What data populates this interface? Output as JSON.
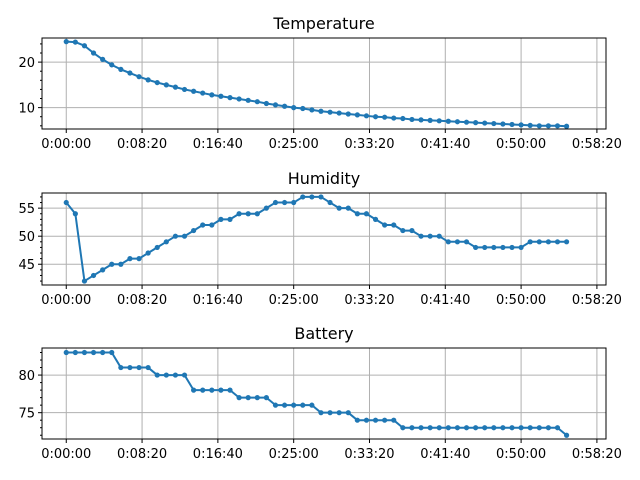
{
  "chart_data": [
    {
      "type": "line",
      "title": "Temperature",
      "xlabel": "",
      "ylabel": "",
      "x_unit": "seconds",
      "x_ticks": [
        0,
        500,
        1000,
        1500,
        2000,
        2500,
        3000,
        3500
      ],
      "x_tick_labels": [
        "0:00:00",
        "0:08:20",
        "0:16:40",
        "0:25:00",
        "0:33:20",
        "0:41:40",
        "0:50:00",
        "0:58:20"
      ],
      "xlim": [
        -160,
        3560
      ],
      "y_ticks": [
        10,
        20
      ],
      "y_tick_labels": [
        "10",
        "20"
      ],
      "ylim": [
        5.3,
        25.3
      ],
      "grid": true,
      "color": "#1f77b4",
      "x": [
        0,
        60,
        120,
        180,
        240,
        300,
        360,
        420,
        480,
        540,
        600,
        660,
        720,
        780,
        840,
        900,
        960,
        1020,
        1080,
        1140,
        1200,
        1260,
        1320,
        1380,
        1440,
        1500,
        1560,
        1620,
        1680,
        1740,
        1800,
        1860,
        1920,
        1980,
        2040,
        2100,
        2160,
        2220,
        2280,
        2340,
        2400,
        2460,
        2520,
        2580,
        2640,
        2700,
        2760,
        2820,
        2880,
        2940,
        3000,
        3060,
        3120,
        3180,
        3240,
        3300
      ],
      "y": [
        24.5,
        24.4,
        23.6,
        22.0,
        20.6,
        19.4,
        18.4,
        17.6,
        16.8,
        16.1,
        15.5,
        15.0,
        14.5,
        14.0,
        13.6,
        13.2,
        12.8,
        12.5,
        12.2,
        11.9,
        11.6,
        11.3,
        10.9,
        10.6,
        10.3,
        10.0,
        9.8,
        9.5,
        9.2,
        9.0,
        8.8,
        8.6,
        8.4,
        8.2,
        8.0,
        7.9,
        7.7,
        7.6,
        7.4,
        7.3,
        7.2,
        7.1,
        7.0,
        6.9,
        6.8,
        6.7,
        6.6,
        6.5,
        6.4,
        6.3,
        6.2,
        6.1,
        6.0,
        6.0,
        6.0,
        5.9
      ]
    },
    {
      "type": "line",
      "title": "Humidity",
      "xlabel": "",
      "ylabel": "",
      "x_unit": "seconds",
      "x_ticks": [
        0,
        500,
        1000,
        1500,
        2000,
        2500,
        3000,
        3500
      ],
      "x_tick_labels": [
        "0:00:00",
        "0:08:20",
        "0:16:40",
        "0:25:00",
        "0:33:20",
        "0:41:40",
        "0:50:00",
        "0:58:20"
      ],
      "xlim": [
        -160,
        3560
      ],
      "y_ticks": [
        45,
        50,
        55
      ],
      "y_tick_labels": [
        "45",
        "50",
        "55"
      ],
      "ylim": [
        41.3,
        57.7
      ],
      "grid": true,
      "color": "#1f77b4",
      "x": [
        0,
        60,
        120,
        180,
        240,
        300,
        360,
        420,
        480,
        540,
        600,
        660,
        720,
        780,
        840,
        900,
        960,
        1020,
        1080,
        1140,
        1200,
        1260,
        1320,
        1380,
        1440,
        1500,
        1560,
        1620,
        1680,
        1740,
        1800,
        1860,
        1920,
        1980,
        2040,
        2100,
        2160,
        2220,
        2280,
        2340,
        2400,
        2460,
        2520,
        2580,
        2640,
        2700,
        2760,
        2820,
        2880,
        2940,
        3000,
        3060,
        3120,
        3180,
        3240,
        3300
      ],
      "y": [
        56,
        54,
        42,
        43,
        44,
        45,
        45,
        46,
        46,
        47,
        48,
        49,
        50,
        50,
        51,
        52,
        52,
        53,
        53,
        54,
        54,
        54,
        55,
        56,
        56,
        56,
        57,
        57,
        57,
        56,
        55,
        55,
        54,
        54,
        53,
        52,
        52,
        51,
        51,
        50,
        50,
        50,
        49,
        49,
        49,
        48,
        48,
        48,
        48,
        48,
        48,
        49,
        49,
        49,
        49,
        49
      ]
    },
    {
      "type": "line",
      "title": "Battery",
      "xlabel": "",
      "ylabel": "",
      "x_unit": "seconds",
      "x_ticks": [
        0,
        500,
        1000,
        1500,
        2000,
        2500,
        3000,
        3500
      ],
      "x_tick_labels": [
        "0:00:00",
        "0:08:20",
        "0:16:40",
        "0:25:00",
        "0:33:20",
        "0:41:40",
        "0:50:00",
        "0:58:20"
      ],
      "xlim": [
        -160,
        3560
      ],
      "y_ticks": [
        75,
        80
      ],
      "y_tick_labels": [
        "75",
        "80"
      ],
      "ylim": [
        71.5,
        83.6
      ],
      "grid": true,
      "color": "#1f77b4",
      "x": [
        0,
        60,
        120,
        180,
        240,
        300,
        360,
        420,
        480,
        540,
        600,
        660,
        720,
        780,
        840,
        900,
        960,
        1020,
        1080,
        1140,
        1200,
        1260,
        1320,
        1380,
        1440,
        1500,
        1560,
        1620,
        1680,
        1740,
        1800,
        1860,
        1920,
        1980,
        2040,
        2100,
        2160,
        2220,
        2280,
        2340,
        2400,
        2460,
        2520,
        2580,
        2640,
        2700,
        2760,
        2820,
        2880,
        2940,
        3000,
        3060,
        3120,
        3180,
        3240,
        3300
      ],
      "y": [
        83,
        83,
        83,
        83,
        83,
        83,
        81,
        81,
        81,
        81,
        80,
        80,
        80,
        80,
        78,
        78,
        78,
        78,
        78,
        77,
        77,
        77,
        77,
        76,
        76,
        76,
        76,
        76,
        75,
        75,
        75,
        75,
        74,
        74,
        74,
        74,
        74,
        73,
        73,
        73,
        73,
        73,
        73,
        73,
        73,
        73,
        73,
        73,
        73,
        73,
        73,
        73,
        73,
        73,
        73,
        72
      ]
    }
  ]
}
